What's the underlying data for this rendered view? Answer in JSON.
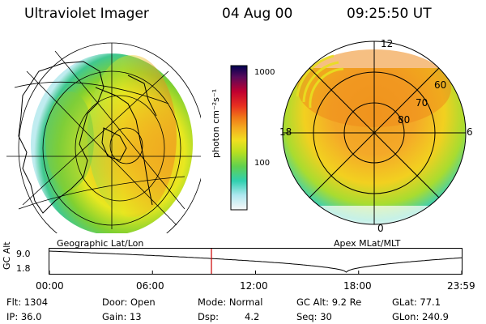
{
  "header": {
    "instrument": "Ultraviolet Imager",
    "date": "04 Aug 00",
    "time": "09:25:50 UT"
  },
  "colorbar": {
    "unit_label": "photon cm⁻²s⁻¹",
    "tick_labels": [
      "1000",
      "100"
    ]
  },
  "left_panel": {
    "caption": "Geographic Lat/Lon"
  },
  "right_panel": {
    "caption": "Apex MLat/MLT",
    "mlt_labels": {
      "top": "12",
      "left": "18",
      "right": "6",
      "bottom": "0"
    },
    "lat_labels": [
      "60",
      "70",
      "80"
    ]
  },
  "altitude_plot": {
    "ylabel": "GC Alt",
    "y_ticks": [
      "9.0",
      "1.8"
    ],
    "x_ticks": [
      "00:00",
      "06:00",
      "12:00",
      "18:00",
      "23:59"
    ],
    "current_time_fraction": 0.393,
    "perigee_fraction": 0.72
  },
  "info": {
    "flt": "Flt: 1304",
    "ip": "IP: 36.0",
    "door": "Door: Open",
    "gain": "Gain: 13",
    "mode": "Mode: Normal",
    "dsp": "Dsp:",
    "dsp_val": "4.2",
    "gc_alt": "GC Alt: 9.2 Re",
    "seq": "Seq: 30",
    "glat": "GLat:  77.1",
    "glon": "GLon: 240.9"
  },
  "colors": {
    "bar_line": "#000000",
    "time_marker": "#cc0000"
  }
}
